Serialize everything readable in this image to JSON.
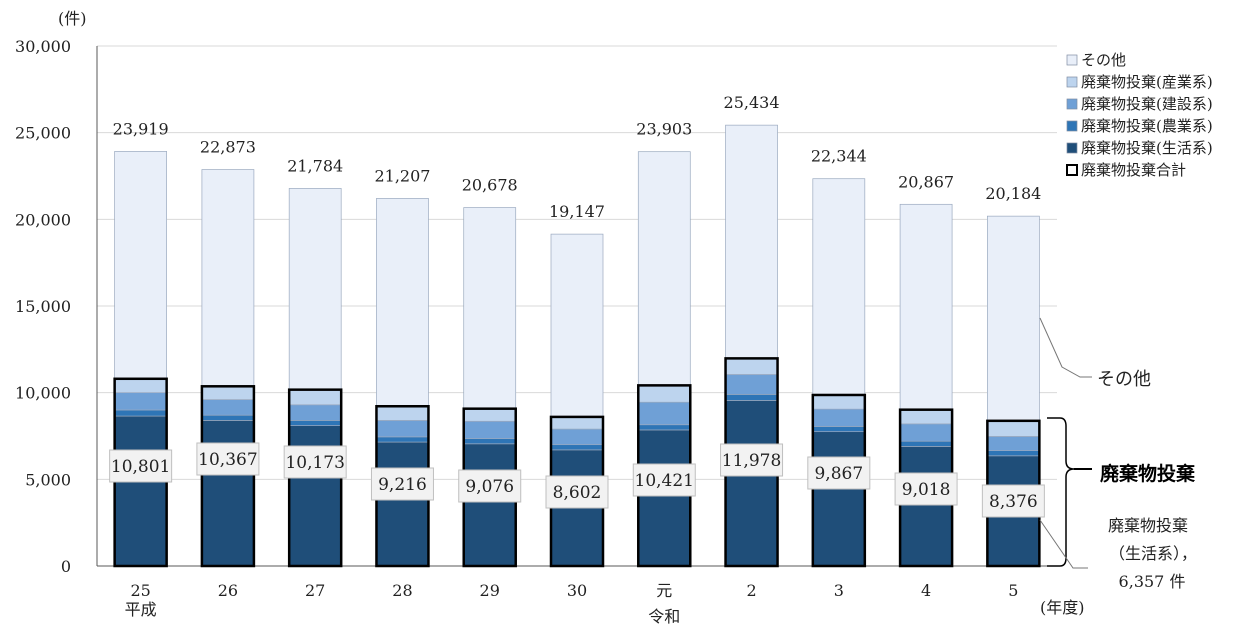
{
  "chart_data": {
    "type": "bar",
    "stacked": true,
    "y_unit_label": "(件)",
    "x_unit_label": "(年度)",
    "ylim": [
      0,
      30000
    ],
    "yticks": [
      0,
      5000,
      10000,
      15000,
      20000,
      25000,
      30000
    ],
    "ytick_labels": [
      "0",
      "5,000",
      "10,000",
      "15,000",
      "20,000",
      "25,000",
      "30,000"
    ],
    "grid": true,
    "categories": [
      "25",
      "26",
      "27",
      "28",
      "29",
      "30",
      "元",
      "2",
      "3",
      "4",
      "5"
    ],
    "era_labels": [
      {
        "category_index": 0,
        "text": "平成"
      },
      {
        "category_index": 6,
        "text": "令和"
      }
    ],
    "series": [
      {
        "name": "廃棄物投棄(生活系)",
        "color": "#1f4e79",
        "values": [
          8650,
          8400,
          8100,
          7150,
          7050,
          6700,
          7850,
          9550,
          7750,
          6900,
          6357
        ]
      },
      {
        "name": "廃棄物投棄(農業系)",
        "color": "#2e75b6",
        "values": [
          350,
          300,
          300,
          300,
          300,
          300,
          300,
          350,
          300,
          300,
          300
        ]
      },
      {
        "name": "廃棄物投棄(建設系)",
        "color": "#6fa0d6",
        "values": [
          1000,
          900,
          900,
          950,
          1000,
          900,
          1300,
          1150,
          1000,
          1000,
          819
        ]
      },
      {
        "name": "廃棄物投棄(産業系)",
        "color": "#bdd4ee",
        "values": [
          801,
          767,
          873,
          816,
          726,
          702,
          971,
          928,
          817,
          818,
          900
        ]
      },
      {
        "name": "その他",
        "color": "#e9eff9",
        "values": [
          13118,
          12506,
          11611,
          11991,
          11602,
          10545,
          13482,
          13456,
          12477,
          11849,
          11808
        ]
      }
    ],
    "legend_outline_entry": "廃棄物投棄合計",
    "dumping_totals": [
      10801,
      10367,
      10173,
      9216,
      9076,
      8602,
      10421,
      11978,
      9867,
      9018,
      8376
    ],
    "dumping_total_labels": [
      "10,801",
      "10,367",
      "10,173",
      "9,216",
      "9,076",
      "8,602",
      "10,421",
      "11,978",
      "9,867",
      "9,018",
      "8,376"
    ],
    "totals": [
      23919,
      22873,
      21784,
      21207,
      20678,
      19147,
      23903,
      25434,
      22344,
      20867,
      20184
    ],
    "total_labels": [
      "23,919",
      "22,873",
      "21,784",
      "21,207",
      "20,678",
      "19,147",
      "23,903",
      "25,434",
      "22,344",
      "20,867",
      "20,184"
    ],
    "legend_position": "right",
    "annotations": {
      "other": "その他",
      "dumping": "廃棄物投棄",
      "household_line1": "廃棄物投棄",
      "household_line2": "（生活系），",
      "household_line3": "6,357 件"
    }
  }
}
